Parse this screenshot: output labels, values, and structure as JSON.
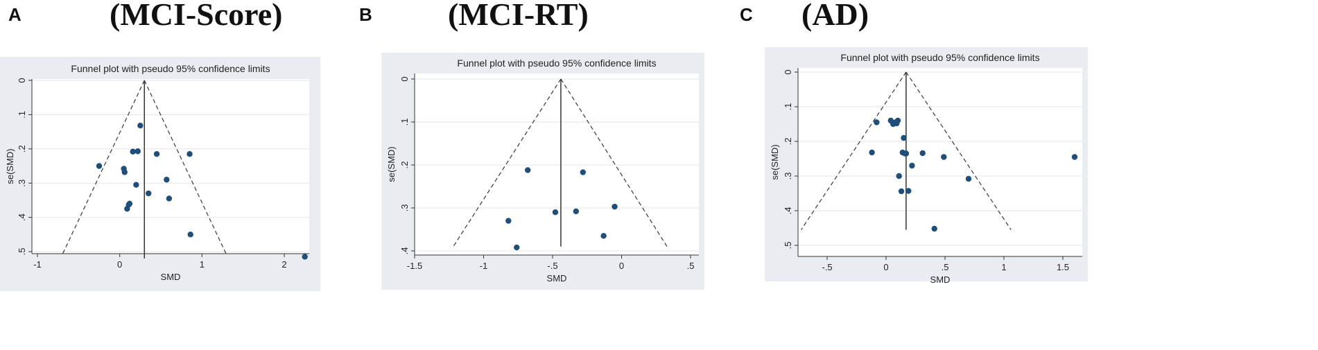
{
  "panels": [
    {
      "letter": "A",
      "title": "(MCI-Score)"
    },
    {
      "letter": "B",
      "title": "(MCI-RT)"
    },
    {
      "letter": "C",
      "title": "(AD)"
    }
  ],
  "chart_data": [
    {
      "type": "scatter",
      "title": "Funnel plot with pseudo 95% confidence limits",
      "xlabel": "SMD",
      "ylabel": "se(SMD)",
      "xlim": [
        -1.1,
        2.3
      ],
      "ylim": [
        0,
        0.52
      ],
      "y_reversed": true,
      "xticks": [
        -1,
        0,
        1,
        2
      ],
      "xtick_labels": [
        "-1",
        "0",
        "1",
        "2"
      ],
      "yticks": [
        0,
        0.1,
        0.2,
        0.3,
        0.4,
        0.5
      ],
      "ytick_labels": [
        "0",
        ".1",
        ".2",
        ".3",
        ".4",
        ".5"
      ],
      "pooled_smd": 0.3,
      "funnel_lines": [
        {
          "x": [
            0.3,
            -0.7
          ],
          "y": [
            0,
            0.51
          ]
        },
        {
          "x": [
            0.3,
            1.3
          ],
          "y": [
            0,
            0.51
          ]
        }
      ],
      "reference_line": {
        "x": [
          0.3,
          0.3
        ],
        "y": [
          0,
          0.52
        ]
      },
      "grid": "horizontal",
      "points": {
        "x": [
          -0.25,
          0.05,
          0.06,
          0.16,
          0.22,
          0.25,
          0.12,
          0.2,
          0.09,
          0.11,
          0.35,
          0.45,
          0.57,
          0.6,
          0.85,
          0.86,
          2.25
        ],
        "y": [
          0.25,
          0.258,
          0.268,
          0.208,
          0.207,
          0.132,
          0.36,
          0.305,
          0.375,
          0.363,
          0.33,
          0.215,
          0.29,
          0.345,
          0.215,
          0.45,
          0.515
        ]
      }
    },
    {
      "type": "scatter",
      "title": "Funnel plot with pseudo 95% confidence limits",
      "xlabel": "SMD",
      "ylabel": "se(SMD)",
      "xlim": [
        -1.5,
        0.5
      ],
      "ylim": [
        0,
        0.4
      ],
      "y_reversed": true,
      "xticks": [
        -1.5,
        -1,
        -0.5,
        0,
        0.5
      ],
      "xtick_labels": [
        "-1.5",
        "-1",
        "-.5",
        "0",
        ".5"
      ],
      "yticks": [
        0,
        0.1,
        0.2,
        0.3,
        0.4
      ],
      "ytick_labels": [
        "0",
        ".1",
        ".2",
        ".3",
        ".4"
      ],
      "pooled_smd": -0.44,
      "funnel_lines": [
        {
          "x": [
            -0.44,
            -1.22
          ],
          "y": [
            0,
            0.39
          ]
        },
        {
          "x": [
            -0.44,
            0.33
          ],
          "y": [
            0,
            0.39
          ]
        }
      ],
      "reference_line": {
        "x": [
          -0.44,
          -0.44
        ],
        "y": [
          0,
          0.39
        ]
      },
      "grid": "horizontal",
      "points": {
        "x": [
          -0.68,
          -0.28,
          -0.82,
          -0.48,
          -0.33,
          -0.05,
          -0.13,
          -0.76
        ],
        "y": [
          0.212,
          0.217,
          0.33,
          0.31,
          0.308,
          0.297,
          0.365,
          0.392
        ]
      }
    },
    {
      "type": "scatter",
      "title": "Funnel plot with pseudo 95% confidence limits",
      "xlabel": "SMD",
      "ylabel": "se(SMD)",
      "xlim": [
        -0.85,
        1.6
      ],
      "ylim": [
        0,
        0.5
      ],
      "y_reversed": true,
      "xticks": [
        -0.5,
        0,
        0.5,
        1,
        1.5
      ],
      "xtick_labels": [
        "-.5",
        "0",
        ".5",
        "1",
        "1.5"
      ],
      "yticks": [
        0,
        0.1,
        0.2,
        0.3,
        0.4,
        0.5
      ],
      "ytick_labels": [
        "0",
        ".1",
        ".2",
        ".3",
        ".4",
        ".5"
      ],
      "pooled_smd": 0.17,
      "funnel_lines": [
        {
          "x": [
            0.17,
            -0.72
          ],
          "y": [
            0,
            0.455
          ]
        },
        {
          "x": [
            0.17,
            1.06
          ],
          "y": [
            0,
            0.455
          ]
        }
      ],
      "reference_line": {
        "x": [
          0.17,
          0.17
        ],
        "y": [
          0,
          0.455
        ]
      },
      "grid": "horizontal",
      "points": {
        "x": [
          -0.08,
          0.04,
          0.06,
          0.08,
          0.1,
          0.09,
          -0.12,
          0.15,
          0.14,
          0.17,
          0.16,
          0.22,
          0.31,
          0.49,
          0.11,
          0.13,
          0.19,
          0.7,
          0.41,
          1.6
        ],
        "y": [
          0.145,
          0.14,
          0.15,
          0.145,
          0.14,
          0.148,
          0.232,
          0.19,
          0.232,
          0.235,
          0.235,
          0.27,
          0.234,
          0.245,
          0.3,
          0.344,
          0.343,
          0.308,
          0.452,
          0.245
        ]
      }
    }
  ]
}
